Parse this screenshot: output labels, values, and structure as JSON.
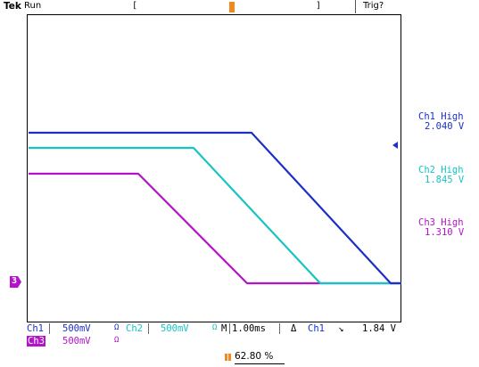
{
  "header": {
    "brand": "Tek",
    "state": "Run",
    "trigger_status": "Trig?",
    "acquisition_window_left_bracket": "[",
    "acquisition_window_right_bracket": "]"
  },
  "markers": {
    "ground_marker_label": "3"
  },
  "readouts": [
    {
      "title": "Ch1 High",
      "value": "2.040 V",
      "color": "#1c2fc8"
    },
    {
      "title": "Ch2 High",
      "value": "1.845 V",
      "color": "#16c4c4"
    },
    {
      "title": "Ch3 High",
      "value": "1.310 V",
      "color": "#b313c9"
    }
  ],
  "channels": {
    "ch1": {
      "label": "Ch1",
      "scale": "500mV",
      "coupling": "Ω",
      "color": "#1c2fc8"
    },
    "ch2": {
      "label": "Ch2",
      "scale": "500mV",
      "coupling": "Ω",
      "color": "#16c4c4"
    },
    "ch3": {
      "label": "Ch3",
      "scale": "500mV",
      "coupling": "Ω",
      "color": "#b313c9"
    }
  },
  "timebase": {
    "label": "M",
    "value": "1.00ms"
  },
  "trigger": {
    "delta": "Δ",
    "source": "Ch1",
    "slope": "↘",
    "level": "1.84 V"
  },
  "position": {
    "value": "62.80 %"
  },
  "colors": {
    "ch1": "#1c2fc8",
    "ch2": "#16c4c4",
    "ch3": "#b313c9",
    "trigger_marker": "#f08a1c",
    "graticule": "#000000"
  },
  "waveforms": [
    {
      "channel": "ch1",
      "high_level_v": 2.04,
      "low_level_v": 0.0
    },
    {
      "channel": "ch2",
      "high_level_v": 1.845,
      "low_level_v": 0.0
    },
    {
      "channel": "ch3",
      "high_level_v": 1.31,
      "low_level_v": 0.0
    }
  ]
}
